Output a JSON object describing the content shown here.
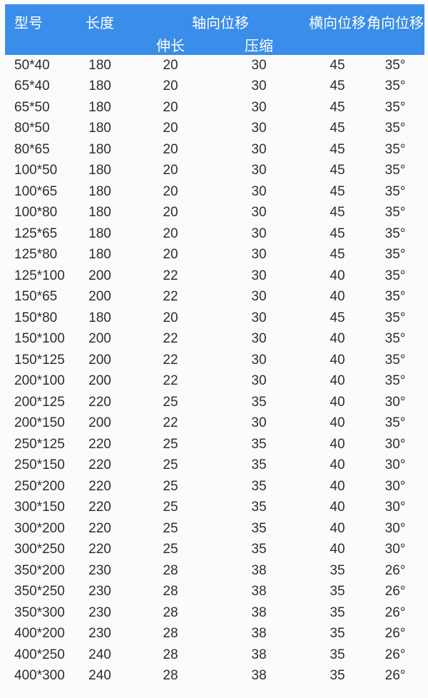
{
  "colors": {
    "header_bg": "#3a8eea",
    "header_text": "#ffffff",
    "body_text": "#2d2d2d",
    "page_bg": "#fbfbfb"
  },
  "table": {
    "header": {
      "col_model": "型号",
      "col_length": "长度",
      "col_axial": "轴向位移",
      "col_axial_extend": "伸长",
      "col_axial_compress": "压缩",
      "col_lateral": "横向位移",
      "col_angular": "角向位移"
    },
    "rows": [
      [
        "50*40",
        "180",
        "20",
        "30",
        "45",
        "35°"
      ],
      [
        "65*40",
        "180",
        "20",
        "30",
        "45",
        "35°"
      ],
      [
        "65*50",
        "180",
        "20",
        "30",
        "45",
        "35°"
      ],
      [
        "80*50",
        "180",
        "20",
        "30",
        "45",
        "35°"
      ],
      [
        "80*65",
        "180",
        "20",
        "30",
        "45",
        "35°"
      ],
      [
        "100*50",
        "180",
        "20",
        "30",
        "45",
        "35°"
      ],
      [
        "100*65",
        "180",
        "20",
        "30",
        "45",
        "35°"
      ],
      [
        "100*80",
        "180",
        "20",
        "30",
        "45",
        "35°"
      ],
      [
        "125*65",
        "180",
        "20",
        "30",
        "45",
        "35°"
      ],
      [
        "125*80",
        "180",
        "20",
        "30",
        "45",
        "35°"
      ],
      [
        "125*100",
        "200",
        "22",
        "30",
        "40",
        "35°"
      ],
      [
        "150*65",
        "200",
        "22",
        "30",
        "40",
        "35°"
      ],
      [
        "150*80",
        "180",
        "20",
        "30",
        "45",
        "35°"
      ],
      [
        "150*100",
        "200",
        "22",
        "30",
        "40",
        "35°"
      ],
      [
        "150*125",
        "200",
        "22",
        "30",
        "40",
        "35°"
      ],
      [
        "200*100",
        "200",
        "22",
        "30",
        "40",
        "35°"
      ],
      [
        "200*125",
        "220",
        "25",
        "35",
        "40",
        "30°"
      ],
      [
        "200*150",
        "200",
        "22",
        "30",
        "40",
        "35°"
      ],
      [
        "250*125",
        "220",
        "25",
        "35",
        "40",
        "30°"
      ],
      [
        "250*150",
        "220",
        "25",
        "35",
        "40",
        "30°"
      ],
      [
        "250*200",
        "220",
        "25",
        "35",
        "40",
        "30°"
      ],
      [
        "300*150",
        "220",
        "25",
        "35",
        "40",
        "30°"
      ],
      [
        "300*200",
        "220",
        "25",
        "35",
        "40",
        "30°"
      ],
      [
        "300*250",
        "220",
        "25",
        "35",
        "40",
        "30°"
      ],
      [
        "350*200",
        "230",
        "28",
        "38",
        "35",
        "26°"
      ],
      [
        "350*250",
        "230",
        "28",
        "38",
        "35",
        "26°"
      ],
      [
        "350*300",
        "230",
        "28",
        "38",
        "35",
        "26°"
      ],
      [
        "400*200",
        "230",
        "28",
        "38",
        "35",
        "26°"
      ],
      [
        "400*250",
        "240",
        "28",
        "38",
        "35",
        "26°"
      ],
      [
        "400*300",
        "240",
        "28",
        "38",
        "35",
        "26°"
      ]
    ]
  }
}
